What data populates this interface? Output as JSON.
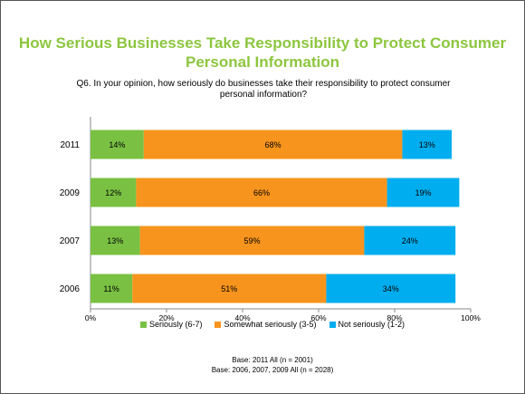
{
  "title": "How Serious Businesses Take Responsibility to Protect Consumer Personal Information",
  "question": "Q6. In your opinion, how seriously do businesses take their responsibility to protect consumer personal information?",
  "base_line_1": "Base: 2011 All (n = 2001)",
  "base_line_2": "Base: 2006, 2007, 2009 All (n = 2028)",
  "colors": {
    "seriously": "#7ac143",
    "somewhat": "#f7941d",
    "not": "#00aeef"
  },
  "chart_data": {
    "type": "bar",
    "orientation": "horizontal",
    "stacked": true,
    "categories": [
      "2011",
      "2009",
      "2007",
      "2006"
    ],
    "series": [
      {
        "name": "Seriously (6-7)",
        "values": [
          14,
          12,
          13,
          11
        ],
        "labels": [
          "14%",
          "12%",
          "13%",
          "11%"
        ]
      },
      {
        "name": "Somewhat seriously (3-5)",
        "values": [
          68,
          66,
          59,
          51
        ],
        "labels": [
          "68%",
          "66%",
          "59%",
          "51%"
        ]
      },
      {
        "name": "Not seriously (1-2)",
        "values": [
          13,
          19,
          24,
          34
        ],
        "labels": [
          "13%",
          "19%",
          "24%",
          "34%"
        ]
      }
    ],
    "xlim": [
      0,
      100
    ],
    "xticks": [
      0,
      20,
      40,
      60,
      80,
      100
    ],
    "xtick_labels": [
      "0%",
      "20%",
      "40%",
      "60%",
      "80%",
      "100%"
    ],
    "legend_position": "bottom",
    "grid": false
  }
}
